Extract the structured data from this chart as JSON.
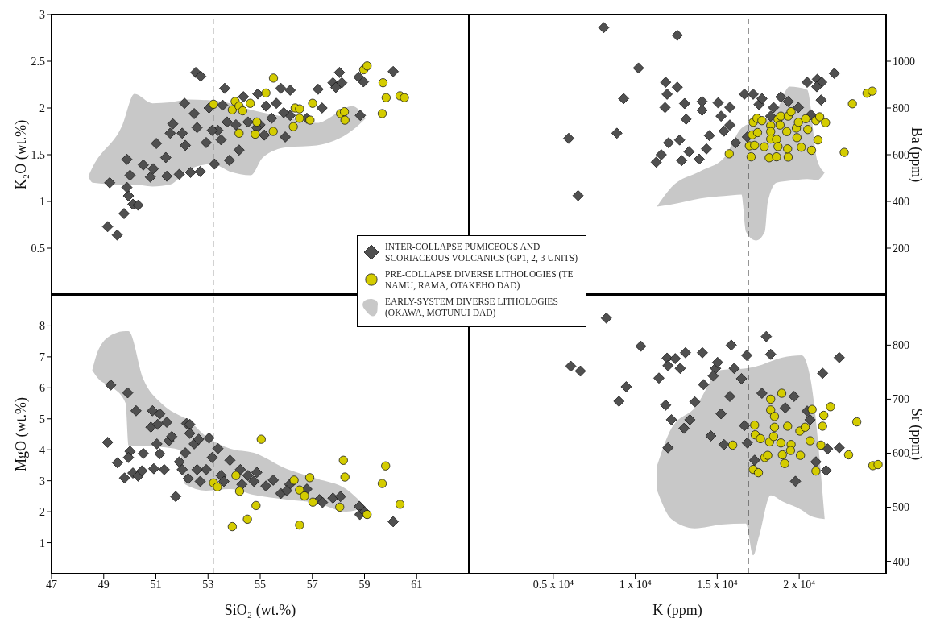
{
  "chart_data": [
    {
      "type": "scatter",
      "ylabel": "K₂O (wt.%)",
      "xlim": [
        47,
        63
      ],
      "xticks": [
        {
          "value": 47,
          "label": null
        },
        {
          "value": 49,
          "label": null
        },
        {
          "value": 51,
          "label": null
        },
        {
          "value": 53,
          "label": null
        },
        {
          "value": 55,
          "label": null
        },
        {
          "value": 57,
          "label": null
        },
        {
          "value": 59,
          "label": null
        },
        {
          "value": 61,
          "label": null
        }
      ],
      "ylim": [
        0,
        3
      ],
      "yticks": [
        0.5,
        1,
        1.5,
        2,
        2.5,
        3
      ],
      "tick_labels": "y",
      "legend": "bottom right",
      "ref_lines": [
        {
          "axis": "x",
          "value": 53.2,
          "line_style": "dashed",
          "color": "#333333"
        }
      ],
      "series": [
        {
          "name": "INTER-COLLAPSE PUMICEOUS AND SCORIACEOUS VOLCANICS (GP1, 2, 3 UNITS)",
          "color": "#505050",
          "marker": "diamond",
          "x": [
            49.15,
            49.52,
            49.78,
            50.12,
            50.32,
            49.95,
            49.89,
            49.23,
            49.89,
            50.01,
            50.52,
            50.79,
            50.9,
            51.02,
            51.42,
            51.38,
            51.65,
            51.9,
            52.1,
            52.13,
            52.33,
            52.47,
            52.53,
            52.72,
            52.7,
            52.93,
            53.04,
            53.25,
            53.38,
            53.56,
            53.64,
            53.82,
            54.19,
            54.36,
            54.53,
            54.91,
            54.99,
            55.16,
            55.22,
            55.62,
            55.79,
            55.96,
            56.15,
            56.15,
            56.79,
            57.22,
            57.37,
            57.79,
            57.9,
            58.04,
            58.13,
            58.78,
            58.96,
            58.84,
            60.1,
            53.16,
            53.73,
            54.07,
            52.58,
            52.01,
            51.55,
            53.5,
            55.44,
            55.9,
            54.87
          ],
          "values": [
            0.73,
            0.64,
            0.87,
            0.97,
            0.96,
            1.06,
            1.15,
            1.2,
            1.45,
            1.28,
            1.39,
            1.26,
            1.35,
            1.62,
            1.27,
            1.47,
            1.83,
            1.29,
            2.05,
            1.6,
            1.31,
            1.94,
            2.38,
            2.34,
            1.32,
            1.63,
            2.0,
            1.4,
            1.76,
            2.03,
            2.21,
            1.44,
            1.55,
            2.12,
            1.85,
            2.15,
            1.82,
            1.71,
            2.02,
            2.05,
            2.21,
            1.69,
            2.19,
            1.92,
            1.89,
            2.2,
            2.0,
            2.27,
            2.22,
            2.38,
            2.27,
            2.33,
            2.28,
            1.92,
            2.39,
            1.76,
            1.85,
            1.82,
            1.79,
            1.73,
            1.73,
            1.66,
            1.89,
            1.95,
            1.79
          ]
        },
        {
          "name": "PRE-COLLAPSE DIVERSE LITHOLOGIES (TE NAMU, RAMA, OTAKEHO DAD)",
          "color": "#d4cc00",
          "marker": "circle",
          "x": [
            53.21,
            54.04,
            53.93,
            54.19,
            54.33,
            54.19,
            54.62,
            55.22,
            55.51,
            55.5,
            56.34,
            56.51,
            56.27,
            56.51,
            56.91,
            57.01,
            58.08,
            58.23,
            58.25,
            58.97,
            59.1,
            59.71,
            59.83,
            59.68,
            60.36,
            60.53,
            54.81,
            54.87
          ],
          "values": [
            2.04,
            2.07,
            1.98,
            2.02,
            1.97,
            1.73,
            2.05,
            2.16,
            2.32,
            1.75,
            2.0,
            1.99,
            1.8,
            1.89,
            1.87,
            2.05,
            1.94,
            1.96,
            1.87,
            2.41,
            2.45,
            2.27,
            2.11,
            1.94,
            2.13,
            2.11,
            1.72,
            1.85
          ]
        },
        {
          "type": "area",
          "name": "EARLY-SYSTEM DIVERSE LITHOLOGIES (OKAWA, MOTUNUI DAD)",
          "color": "#c8c8c8",
          "x": [
            48.41,
            48.58,
            49.72,
            50.18,
            50.87,
            51.55,
            52.24,
            53.16,
            53.84,
            54.64,
            55.1,
            56.02,
            57.16,
            58.53,
            59.05
          ],
          "lower": [
            1.27,
            1.2,
            1.18,
            1.18,
            1.16,
            1.18,
            1.34,
            1.4,
            1.32,
            1.28,
            1.47,
            1.58,
            1.6,
            1.76,
            1.89
          ],
          "upper": [
            1.27,
            1.37,
            1.82,
            2.15,
            2.05,
            2.06,
            2.09,
            2.08,
            2.05,
            1.98,
            1.95,
            1.9,
            1.84,
            2.02,
            1.89
          ],
          "values": [
            null,
            null,
            null,
            null,
            null,
            null,
            null,
            null,
            null,
            null,
            null,
            null,
            null,
            null,
            null
          ]
        }
      ]
    },
    {
      "type": "scatter",
      "y2label": "Ba (ppm)",
      "xlim": [
        -150,
        25300
      ],
      "xticks": [
        {
          "value": 5000,
          "label": null
        },
        {
          "value": 10000,
          "label": null
        },
        {
          "value": 15000,
          "label": null
        },
        {
          "value": 20000,
          "label": null
        }
      ],
      "y2lim": [
        0,
        1200
      ],
      "y2ticks": [
        200,
        400,
        600,
        800,
        1000
      ],
      "tick_labels": "y",
      "ref_lines": [
        {
          "axis": "x",
          "value": 16900,
          "line_style": "dashed",
          "color": "#333333"
        }
      ],
      "series": [
        {
          "axis": "y2",
          "color": "#505050",
          "marker": "diamond",
          "x": [
            5943,
            6513,
            8079,
            8880,
            9290,
            10198,
            12565,
            11853,
            11817,
            11942,
            12565,
            13010,
            11283,
            11586,
            12832,
            13277,
            12707,
            13099,
            14078,
            14078,
            15057,
            14523,
            13900,
            15235,
            15769,
            16659,
            17193,
            16125,
            16837,
            17549,
            17727,
            18439,
            18875,
            19329,
            19952,
            20486,
            21109,
            21376,
            21073,
            21340,
            22141,
            20717,
            18261,
            15413,
            14345,
            15769,
            12031
          ],
          "values": [
            670,
            425,
            1144,
            692,
            840,
            971,
            1111,
            910,
            802,
            859,
            889,
            819,
            568,
            600,
            575,
            613,
            663,
            752,
            790,
            828,
            822,
            682,
            581,
            765,
            803,
            859,
            859,
            651,
            676,
            815,
            840,
            802,
            847,
            828,
            802,
            910,
            923,
            910,
            891,
            834,
            948,
            771,
            765,
            701,
            625,
            727,
            651
          ]
        },
        {
          "axis": "y2",
          "color": "#d4cc00",
          "marker": "circle",
          "x": [
            15733,
            17068,
            16962,
            17282,
            17139,
            17460,
            17193,
            17424,
            17727,
            17870,
            18172,
            18261,
            18261,
            18261,
            18617,
            18617,
            18706,
            18706,
            18831,
            18884,
            19240,
            19329,
            19294,
            19329,
            19507,
            19827,
            19863,
            19952,
            20130,
            20397,
            20522,
            20753,
            21020,
            21145,
            21251,
            21607,
            22747,
            23245,
            24135,
            24455
          ],
          "values": [
            604,
            591,
            638,
            640,
            685,
            695,
            739,
            756,
            746,
            634,
            587,
            724,
            699,
            667,
            591,
            666,
            635,
            752,
            727,
            765,
            699,
            590,
            625,
            765,
            784,
            714,
            673,
            739,
            632,
            754,
            708,
            619,
            746,
            663,
            762,
            737,
            610,
            818,
            863,
            872
          ]
        },
        {
          "type": "area",
          "axis": "y2",
          "color": "#c8c8c8",
          "x": [
            11319,
            12209,
            13989,
            15413,
            16481,
            16748,
            17371,
            17905,
            18083,
            18617,
            19418,
            20486,
            21109,
            21554
          ],
          "lower": [
            378,
            387,
            413,
            423,
            429,
            271,
            233,
            271,
            397,
            480,
            489,
            496,
            492,
            524
          ],
          "upper": [
            378,
            461,
            530,
            587,
            714,
            727,
            739,
            752,
            765,
            790,
            891,
            878,
            575,
            524
          ],
          "values": [
            null,
            null,
            null,
            null,
            null,
            null,
            null,
            null,
            null,
            null,
            null,
            null,
            null,
            null
          ]
        }
      ]
    },
    {
      "type": "scatter",
      "xlabel": "SiO₂ (wt.%)",
      "ylabel": "MgO (wt.%)",
      "xlim": [
        47,
        63
      ],
      "xticks": [
        47,
        49,
        51,
        53,
        55,
        57,
        59,
        61
      ],
      "ylim": [
        0,
        9
      ],
      "yticks": [
        1,
        2,
        3,
        4,
        5,
        6,
        7,
        8
      ],
      "ref_lines": [
        {
          "axis": "x",
          "value": 53.2,
          "line_style": "dashed",
          "color": "#333333"
        }
      ],
      "series": [
        {
          "color": "#505050",
          "marker": "diamond",
          "x": [
            49.15,
            49.27,
            49.53,
            49.8,
            49.92,
            50.01,
            49.95,
            50.24,
            50.12,
            50.32,
            50.52,
            50.47,
            50.81,
            50.87,
            50.92,
            51.04,
            51.07,
            51.15,
            51.15,
            51.32,
            51.42,
            51.5,
            51.61,
            51.76,
            51.9,
            52.13,
            52.18,
            52.3,
            52.3,
            52.24,
            52.47,
            52.64,
            52.7,
            53.04,
            53.16,
            53.38,
            53.5,
            53.84,
            54.24,
            54.3,
            54.76,
            54.87,
            55.22,
            55.5,
            55.79,
            56.13,
            56.79,
            57.27,
            57.39,
            57.79,
            58.08,
            58.8,
            58.82,
            59.0,
            60.1,
            52.01,
            52.93,
            53.61,
            54.53,
            56.02,
            52.58
          ],
          "values": [
            4.24,
            6.09,
            3.58,
            3.09,
            5.84,
            3.95,
            3.75,
            5.26,
            3.25,
            3.15,
            3.88,
            3.32,
            4.73,
            5.26,
            3.39,
            4.19,
            4.82,
            5.16,
            3.87,
            3.36,
            4.89,
            4.29,
            4.43,
            2.49,
            3.61,
            3.9,
            4.85,
            4.82,
            4.53,
            3.07,
            4.19,
            4.34,
            2.98,
            4.38,
            3.75,
            4.04,
            3.17,
            3.66,
            3.36,
            2.88,
            2.98,
            3.27,
            2.83,
            3.02,
            2.59,
            2.88,
            2.73,
            2.39,
            2.3,
            2.44,
            2.49,
            2.17,
            1.91,
            2.0,
            1.68,
            3.36,
            3.36,
            2.98,
            3.17,
            2.68,
            3.36
          ]
        },
        {
          "color": "#d4cc00",
          "marker": "circle",
          "x": [
            53.21,
            53.36,
            53.93,
            54.21,
            54.51,
            54.84,
            55.04,
            56.3,
            56.51,
            56.51,
            56.7,
            56.9,
            57.02,
            58.05,
            58.19,
            58.25,
            59.1,
            59.68,
            59.81,
            60.36,
            54.07
          ],
          "values": [
            2.93,
            2.8,
            1.52,
            2.66,
            1.76,
            2.2,
            4.34,
            3.02,
            2.7,
            1.57,
            2.51,
            3.1,
            2.31,
            2.15,
            3.66,
            3.12,
            1.91,
            2.91,
            3.48,
            2.24,
            3.17
          ]
        },
        {
          "type": "area",
          "color": "#c8c8c8",
          "x": [
            48.56,
            48.81,
            49.38,
            49.84,
            49.95,
            50.52,
            51.21,
            51.9,
            52.13,
            52.93,
            53.84,
            54.76,
            56.02,
            57.16,
            58.3,
            59.05
          ],
          "lower": [
            6.57,
            6.28,
            5.99,
            5.5,
            4.14,
            4.12,
            4.09,
            4.0,
            2.88,
            2.68,
            2.73,
            2.54,
            2.39,
            2.28,
            2.0,
            2.15
          ],
          "upper": [
            6.57,
            7.25,
            7.74,
            7.83,
            7.83,
            6.28,
            5.5,
            5.11,
            5.02,
            4.43,
            4.04,
            3.9,
            3.38,
            3.07,
            2.73,
            2.15
          ],
          "values": [
            null,
            null,
            null,
            null,
            null,
            null,
            null,
            null,
            null,
            null,
            null,
            null,
            null,
            null,
            null,
            null
          ]
        }
      ]
    },
    {
      "type": "scatter",
      "xlabel": "K (ppm)",
      "y2label": "Sr (ppm)",
      "xlim": [
        -150,
        25300
      ],
      "xticks": [
        {
          "value": 5000,
          "label": "0.5 x 10⁴"
        },
        {
          "value": 10000,
          "label": "1 x 10⁴"
        },
        {
          "value": 15000,
          "label": "1.5 x 10⁴"
        },
        {
          "value": 20000,
          "label": "2 x 10⁴"
        }
      ],
      "y2lim": [
        377,
        893
      ],
      "y2ticks": [
        400,
        500,
        600,
        700,
        800
      ],
      "ref_lines": [
        {
          "axis": "x",
          "value": 16900,
          "line_style": "dashed",
          "color": "#333333"
        }
      ],
      "series": [
        {
          "axis": "y2",
          "color": "#505050",
          "marker": "diamond",
          "x": [
            6068,
            6655,
            8240,
            9005,
            9450,
            10340,
            11444,
            11995,
            11942,
            11995,
            12440,
            13063,
            14096,
            12975,
            13331,
            12743,
            12209,
            11853,
            14900,
            14167,
            14754,
            15021,
            14612,
            15413,
            15858,
            16036,
            16801,
            16481,
            17994,
            18261,
            17727,
            19151,
            19685,
            19774,
            20486,
            20664,
            21429,
            21643,
            21732,
            22444,
            22444,
            21020,
            17282,
            16659,
            15235,
            13633,
            16837,
            15769
          ],
          "values": [
            761,
            752,
            850,
            696,
            723,
            798,
            739,
            610,
            776,
            762,
            775,
            786,
            786,
            646,
            662,
            757,
            662,
            689,
            757,
            727,
            743,
            768,
            632,
            616,
            800,
            757,
            781,
            738,
            816,
            783,
            711,
            684,
            705,
            548,
            678,
            662,
            748,
            568,
            608,
            777,
            610,
            584,
            587,
            651,
            673,
            695,
            619,
            705
          ]
        },
        {
          "axis": "y2",
          "color": "#d4cc00",
          "marker": "circle",
          "x": [
            15947,
            17282,
            17318,
            17193,
            17513,
            17638,
            17905,
            18083,
            18261,
            18261,
            18190,
            18439,
            18492,
            18492,
            18884,
            18937,
            18973,
            19116,
            19294,
            19507,
            19471,
            20041,
            20077,
            20362,
            20664,
            20789,
            21020,
            21322,
            21429,
            21500,
            21910,
            23014,
            23512,
            24491,
            24811
          ],
          "values": [
            615,
            652,
            634,
            570,
            564,
            627,
            592,
            596,
            700,
            680,
            621,
            631,
            668,
            648,
            619,
            711,
            597,
            581,
            650,
            616,
            605,
            641,
            596,
            648,
            623,
            681,
            567,
            615,
            650,
            670,
            686,
            597,
            658,
            577,
            579
          ]
        },
        {
          "type": "area",
          "axis": "y2",
          "color": "#c8c8c8",
          "x": [
            11319,
            12209,
            13633,
            15235,
            16748,
            17193,
            17549,
            18261,
            18973,
            20153,
            20687,
            21554
          ],
          "lower": [
            532,
            478,
            461,
            468,
            470,
            411,
            446,
            522,
            511,
            495,
            484,
            478
          ],
          "upper": [
            576,
            646,
            684,
            754,
            757,
            759,
            762,
            770,
            777,
            781,
            738,
            478
          ],
          "values": [
            null,
            null,
            null,
            null,
            null,
            null,
            null,
            null,
            null,
            null,
            null,
            null
          ]
        }
      ]
    }
  ]
}
